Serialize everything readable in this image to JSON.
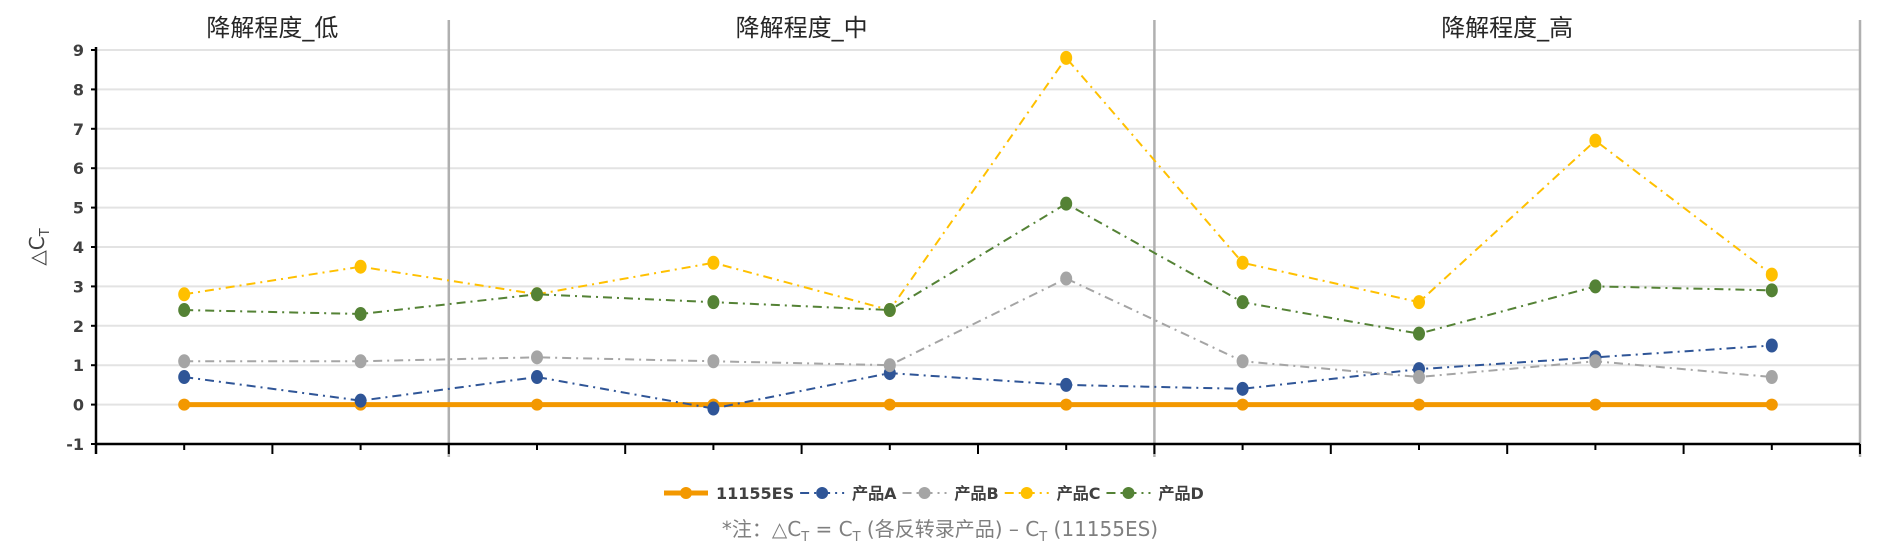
{
  "chart_data": {
    "type": "line",
    "ylabel": "△C",
    "ylabel_sub": "T",
    "ylim": [
      -1,
      9
    ],
    "yticks": [
      "-1",
      "0",
      "1",
      "2",
      "3",
      "4",
      "5",
      "6",
      "7",
      "8",
      "9"
    ],
    "grid": true,
    "legend_position": "bottom",
    "groups": [
      {
        "label": "降解程度_低",
        "count": 2
      },
      {
        "label": "降解程度_中",
        "count": 4
      },
      {
        "label": "降解程度_高",
        "count": 4
      }
    ],
    "series": [
      {
        "name": "11155ES",
        "color": "#F39800",
        "style": "solid",
        "values": [
          0,
          0,
          0,
          0,
          0,
          0,
          0,
          0,
          0,
          0
        ]
      },
      {
        "name": "产品A",
        "color": "#2F5597",
        "style": "dashdot",
        "values": [
          0.7,
          0.1,
          0.7,
          -0.1,
          0.8,
          0.5,
          0.4,
          0.9,
          1.2,
          1.5
        ]
      },
      {
        "name": "产品B",
        "color": "#A5A5A5",
        "style": "dashdot",
        "values": [
          1.1,
          1.1,
          1.2,
          1.1,
          1.0,
          3.2,
          1.1,
          0.7,
          1.1,
          0.7
        ]
      },
      {
        "name": "产品C",
        "color": "#FFC000",
        "style": "dashdot",
        "values": [
          2.8,
          3.5,
          2.8,
          3.6,
          2.4,
          8.8,
          3.6,
          2.6,
          6.7,
          3.3
        ]
      },
      {
        "name": "产品D",
        "color": "#548235",
        "style": "dashdot",
        "values": [
          2.4,
          2.3,
          2.8,
          2.6,
          2.4,
          5.1,
          2.6,
          1.8,
          3.0,
          2.9
        ]
      }
    ],
    "annotation": {
      "prefix": "*注：△C",
      "sub1": "T",
      "mid1": " = C",
      "sub2": "T",
      "mid2": " (各反转录产品) – C",
      "sub3": "T",
      "suffix": " (11155ES)"
    }
  }
}
